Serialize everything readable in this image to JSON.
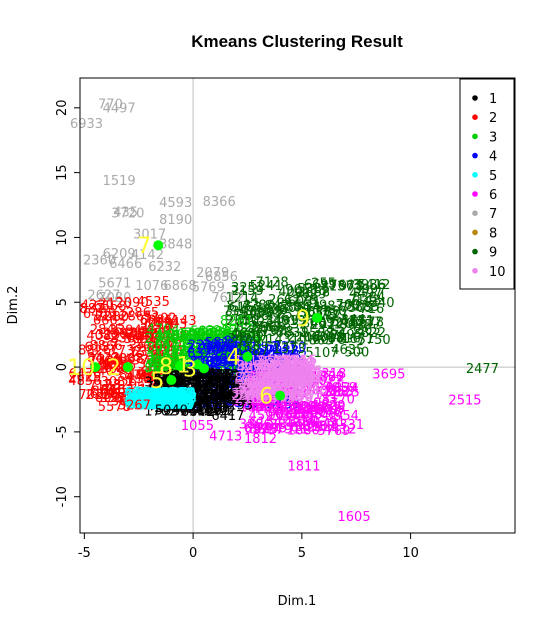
{
  "chart_data": {
    "type": "scatter",
    "title": "Kmeans Clustering Result",
    "xlabel": "Dim.1",
    "ylabel": "Dim.2",
    "xlim": [
      -5.2,
      14.8
    ],
    "ylim": [
      -12.8,
      22.3
    ],
    "x_ticks": [
      -5,
      0,
      5,
      10
    ],
    "y_ticks": [
      -10,
      -5,
      0,
      5,
      10,
      15,
      20
    ],
    "grid": false,
    "reference_lines": {
      "x": 0,
      "y": 0
    },
    "legend": {
      "position": "top-right",
      "entries": [
        {
          "label": "1",
          "color": "#000000"
        },
        {
          "label": "2",
          "color": "#ff0000"
        },
        {
          "label": "3",
          "color": "#00cd00"
        },
        {
          "label": "4",
          "color": "#0000ff"
        },
        {
          "label": "5",
          "color": "#00ffff"
        },
        {
          "label": "6",
          "color": "#ff00ff"
        },
        {
          "label": "7",
          "color": "#aaaaaa"
        },
        {
          "label": "8",
          "color": "#b8860b"
        },
        {
          "label": "9",
          "color": "#006400"
        },
        {
          "label": "10",
          "color": "#ee82ee"
        }
      ]
    },
    "centers": [
      {
        "label": "7",
        "x": -1.6,
        "y": 9.4,
        "color": "#00ff00"
      },
      {
        "label": "9",
        "x": 5.7,
        "y": 3.8,
        "color": "#00ff00"
      },
      {
        "label": "2",
        "x": -3.0,
        "y": 0.0,
        "color": "#00ff00"
      },
      {
        "label": "8",
        "x": -0.6,
        "y": 0.1,
        "color": "#00ff00"
      },
      {
        "label": "1",
        "x": 0.2,
        "y": 0.2,
        "color": "#00ff00"
      },
      {
        "label": "3",
        "x": 0.5,
        "y": -0.1,
        "color": "#00ff00"
      },
      {
        "label": "10",
        "x": -4.5,
        "y": 0.0,
        "color": "#00ff00"
      },
      {
        "label": "5",
        "x": -1.0,
        "y": -1.0,
        "color": "#00ff00"
      },
      {
        "label": "6",
        "x": 4.0,
        "y": -2.2,
        "color": "#00ff00"
      },
      {
        "label": "4",
        "x": 2.5,
        "y": 0.8,
        "color": "#00ff00"
      }
    ],
    "labeled_points": [
      {
        "label": "770",
        "x": -3.8,
        "y": 20.2,
        "cluster": "7"
      },
      {
        "label": "4497",
        "x": -3.4,
        "y": 19.9,
        "cluster": "7"
      },
      {
        "label": "6933",
        "x": -4.9,
        "y": 18.7,
        "cluster": "7"
      },
      {
        "label": "1519",
        "x": -3.4,
        "y": 14.3,
        "cluster": "7"
      },
      {
        "label": "4593",
        "x": -0.8,
        "y": 12.6,
        "cluster": "7"
      },
      {
        "label": "8366",
        "x": 1.2,
        "y": 12.7,
        "cluster": "7"
      },
      {
        "label": "435",
        "x": -3.1,
        "y": 11.9,
        "cluster": "7"
      },
      {
        "label": "3720",
        "x": -3.0,
        "y": 11.8,
        "cluster": "7"
      },
      {
        "label": "8190",
        "x": -0.8,
        "y": 11.3,
        "cluster": "7"
      },
      {
        "label": "3017",
        "x": -2.0,
        "y": 10.2,
        "cluster": "7"
      },
      {
        "label": "3848",
        "x": -0.8,
        "y": 9.4,
        "cluster": "7"
      },
      {
        "label": "6209",
        "x": -3.4,
        "y": 8.7,
        "cluster": "7"
      },
      {
        "label": "4142",
        "x": -2.1,
        "y": 8.6,
        "cluster": "7"
      },
      {
        "label": "2360",
        "x": -4.3,
        "y": 8.2,
        "cluster": "7"
      },
      {
        "label": "6466",
        "x": -3.1,
        "y": 7.9,
        "cluster": "7"
      },
      {
        "label": "6232",
        "x": -1.3,
        "y": 7.7,
        "cluster": "7"
      },
      {
        "label": "2079",
        "x": 0.9,
        "y": 7.2,
        "cluster": "7"
      },
      {
        "label": "6856",
        "x": 1.3,
        "y": 6.9,
        "cluster": "7"
      },
      {
        "label": "5671",
        "x": -3.6,
        "y": 6.4,
        "cluster": "7"
      },
      {
        "label": "1076",
        "x": -1.9,
        "y": 6.2,
        "cluster": "7"
      },
      {
        "label": "6868",
        "x": -0.6,
        "y": 6.2,
        "cluster": "7"
      },
      {
        "label": "5769",
        "x": 0.7,
        "y": 6.1,
        "cluster": "7"
      },
      {
        "label": "7612",
        "x": 1.6,
        "y": 5.3,
        "cluster": "7"
      },
      {
        "label": "2627",
        "x": -4.1,
        "y": 5.5,
        "cluster": "7"
      },
      {
        "label": "7080",
        "x": -3.6,
        "y": 5.3,
        "cluster": "7"
      },
      {
        "label": "9053",
        "x": 5.0,
        "y": 5.9,
        "cluster": "9"
      },
      {
        "label": "255",
        "x": 6.0,
        "y": 6.4,
        "cluster": "9"
      },
      {
        "label": "3936",
        "x": 8.1,
        "y": 6.3,
        "cluster": "9"
      },
      {
        "label": "4340",
        "x": 8.5,
        "y": 4.9,
        "cluster": "9"
      },
      {
        "label": "4280",
        "x": 3.0,
        "y": 4.7,
        "cluster": "9"
      },
      {
        "label": "1865",
        "x": 5.7,
        "y": 2.0,
        "cluster": "9"
      },
      {
        "label": "2477",
        "x": 13.3,
        "y": -0.2,
        "cluster": "9"
      },
      {
        "label": "8261",
        "x": 2.0,
        "y": 3.5,
        "cluster": "3"
      },
      {
        "label": "3695",
        "x": 9.0,
        "y": -0.6,
        "cluster": "6"
      },
      {
        "label": "2515",
        "x": 12.5,
        "y": -2.6,
        "cluster": "6"
      },
      {
        "label": "7125",
        "x": 6.9,
        "y": -2.0,
        "cluster": "6"
      },
      {
        "label": "6331",
        "x": 7.1,
        "y": -4.5,
        "cluster": "6"
      },
      {
        "label": "1055",
        "x": 0.2,
        "y": -4.6,
        "cluster": "6"
      },
      {
        "label": "4713",
        "x": 1.5,
        "y": -5.4,
        "cluster": "6"
      },
      {
        "label": "1812",
        "x": 3.1,
        "y": -5.6,
        "cluster": "6"
      },
      {
        "label": "1811",
        "x": 5.1,
        "y": -7.7,
        "cluster": "6"
      },
      {
        "label": "1605",
        "x": 7.4,
        "y": -11.6,
        "cluster": "6"
      },
      {
        "label": "6417",
        "x": 1.6,
        "y": -3.8,
        "cluster": "1"
      },
      {
        "label": "5040",
        "x": -1.0,
        "y": -3.4,
        "cluster": "1"
      },
      {
        "label": "4143",
        "x": -0.6,
        "y": 3.5,
        "cluster": "2"
      },
      {
        "label": "3267",
        "x": -2.7,
        "y": -3.0,
        "cluster": "2"
      },
      {
        "label": "4230",
        "x": -4.4,
        "y": 4.7,
        "cluster": "2"
      },
      {
        "label": "2090",
        "x": -2.8,
        "y": 4.9,
        "cluster": "2"
      }
    ],
    "dense_clusters": [
      {
        "cluster": "2",
        "x": [
          -5,
          -1
        ],
        "y": [
          -3.2,
          5
        ]
      },
      {
        "cluster": "3",
        "x": [
          -1.5,
          2.5
        ],
        "y": [
          -0.5,
          3
        ]
      },
      {
        "cluster": "4",
        "x": [
          0,
          4.5
        ],
        "y": [
          -3,
          2
        ]
      },
      {
        "cluster": "9",
        "x": [
          2,
          8.5
        ],
        "y": [
          1,
          6.5
        ]
      },
      {
        "cluster": "6",
        "x": [
          2.5,
          7
        ],
        "y": [
          -5,
          -0.5
        ]
      },
      {
        "cluster": "1",
        "x": [
          -1.5,
          2
        ],
        "y": [
          -3.5,
          -0.5
        ]
      },
      {
        "cluster": "5",
        "x": [
          -2.5,
          -0.5
        ],
        "y": [
          -3,
          -2
        ]
      },
      {
        "cluster": "10",
        "x": [
          2.5,
          5.5
        ],
        "y": [
          -2.5,
          0.5
        ]
      }
    ]
  }
}
